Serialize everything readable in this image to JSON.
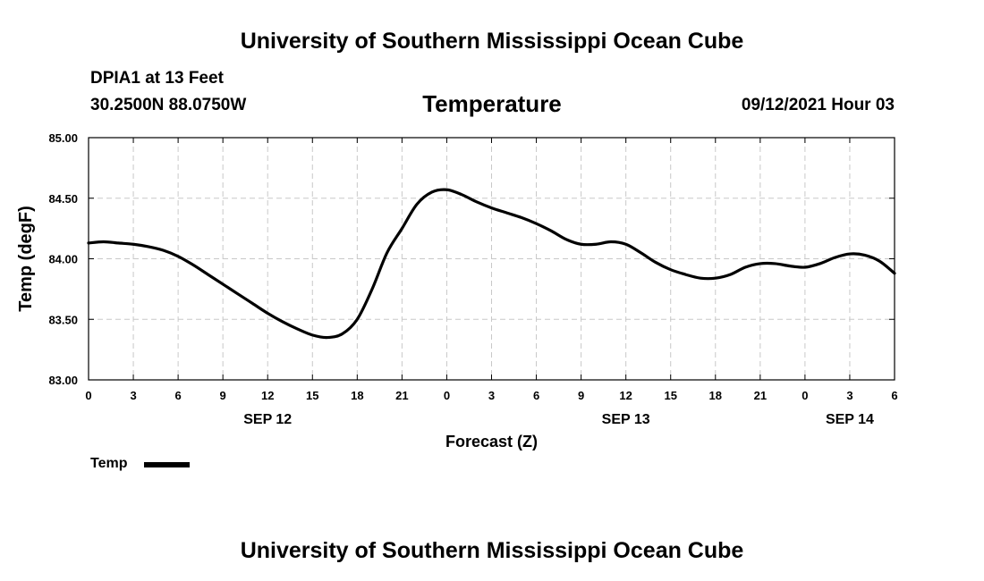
{
  "header": {
    "top_title": "University of Southern Mississippi Ocean Cube",
    "station": "DPIA1 at 13 Feet",
    "coords": "30.2500N  88.0750W",
    "datetime": "09/12/2021 Hour 03"
  },
  "footer": {
    "bottom_title": "University of Southern Mississippi Ocean Cube"
  },
  "legend": {
    "label": "Temp",
    "color": "#000000"
  },
  "chart_data": {
    "type": "line",
    "title": "Temperature",
    "xlabel": "Forecast (Z)",
    "ylabel": "Temp (degF)",
    "xlim": [
      0,
      54
    ],
    "ylim": [
      83.0,
      85.0
    ],
    "grid": true,
    "x_ticks": [
      0,
      3,
      6,
      9,
      12,
      15,
      18,
      21,
      24,
      27,
      30,
      33,
      36,
      39,
      42,
      45,
      48,
      51,
      54
    ],
    "x_tick_labels": [
      "0",
      "3",
      "6",
      "9",
      "12",
      "15",
      "18",
      "21",
      "0",
      "3",
      "6",
      "9",
      "12",
      "15",
      "18",
      "21",
      "0",
      "3",
      "6"
    ],
    "y_ticks": [
      83.0,
      83.5,
      84.0,
      84.5,
      85.0
    ],
    "y_tick_labels": [
      "83.00",
      "83.50",
      "84.00",
      "84.50",
      "85.00"
    ],
    "date_labels": [
      {
        "x": 12,
        "label": "SEP 12"
      },
      {
        "x": 36,
        "label": "SEP 13"
      },
      {
        "x": 51,
        "label": "SEP 14"
      }
    ],
    "series": [
      {
        "name": "Temp",
        "x": [
          0,
          1,
          2,
          3,
          4,
          5,
          6,
          7,
          8,
          9,
          10,
          11,
          12,
          13,
          14,
          15,
          16,
          17,
          18,
          19,
          20,
          21,
          22,
          23,
          24,
          25,
          26,
          27,
          28,
          29,
          30,
          31,
          32,
          33,
          34,
          35,
          36,
          37,
          38,
          39,
          40,
          41,
          42,
          43,
          44,
          45,
          46,
          47,
          48,
          49,
          50,
          51,
          52,
          53,
          54
        ],
        "y": [
          84.13,
          84.14,
          84.13,
          84.12,
          84.1,
          84.07,
          84.02,
          83.95,
          83.87,
          83.79,
          83.71,
          83.63,
          83.55,
          83.48,
          83.42,
          83.37,
          83.35,
          83.38,
          83.5,
          83.75,
          84.05,
          84.25,
          84.45,
          84.55,
          84.57,
          84.53,
          84.47,
          84.42,
          84.38,
          84.34,
          84.29,
          84.23,
          84.16,
          84.12,
          84.12,
          84.14,
          84.12,
          84.05,
          83.97,
          83.91,
          83.87,
          83.84,
          83.84,
          83.87,
          83.93,
          83.96,
          83.96,
          83.94,
          83.93,
          83.96,
          84.01,
          84.04,
          84.03,
          83.98,
          83.88
        ]
      }
    ]
  }
}
